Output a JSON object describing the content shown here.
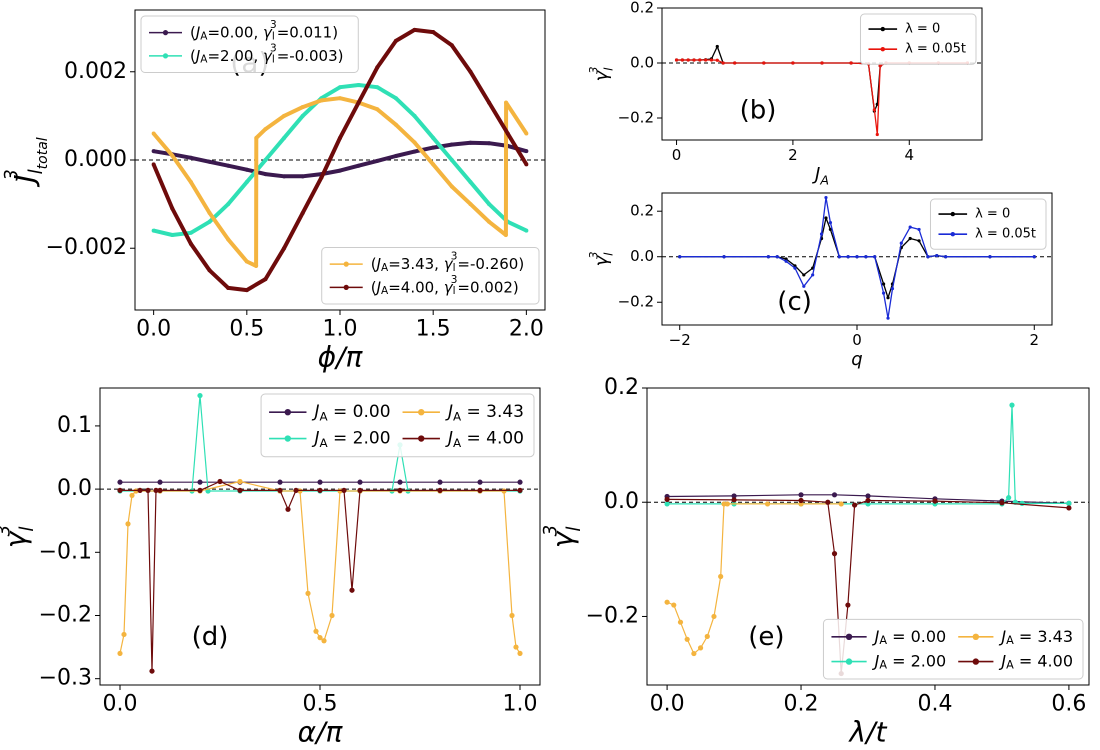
{
  "chart_data": [
    {
      "id": "a",
      "type": "line",
      "panel_label": "(a)",
      "xlabel": "ϕ/π",
      "ylabel_main": "J",
      "ylabel_sup": "3",
      "ylabel_sub": "l",
      "ylabel_subsub": "total",
      "xlim": [
        -0.1,
        2.1
      ],
      "ylim": [
        -0.0034,
        0.0034
      ],
      "xticks": [
        0.0,
        0.5,
        1.0,
        1.5,
        2.0
      ],
      "xtick_labels": [
        "0.0",
        "0.5",
        "1.0",
        "1.5",
        "2.0"
      ],
      "yticks": [
        -0.002,
        0.0,
        0.002
      ],
      "ytick_labels": [
        "−0.002",
        "0.000",
        "0.002"
      ],
      "series": [
        {
          "name": "(J_A=0.00, γ_l^3=0.011)",
          "legend_parts": [
            "(",
            "J",
            "A",
            "=0.00, ",
            "γ",
            "l",
            "3",
            "=0.011)"
          ],
          "color": "#3b1a4f",
          "x": [
            0.0,
            0.1,
            0.2,
            0.3,
            0.4,
            0.5,
            0.6,
            0.7,
            0.8,
            0.9,
            1.0,
            1.1,
            1.2,
            1.3,
            1.4,
            1.5,
            1.6,
            1.7,
            1.8,
            1.9,
            2.0
          ],
          "values": [
            0.0002,
            0.00013,
            5e-05,
            -4e-05,
            -0.00013,
            -0.00022,
            -0.00032,
            -0.00037,
            -0.00037,
            -0.00032,
            -0.00024,
            -0.00013,
            -2e-05,
            9e-05,
            0.00019,
            0.00028,
            0.00035,
            0.00039,
            0.00038,
            0.00032,
            0.0002
          ]
        },
        {
          "name": "(J_A=2.00, γ_l^3=-0.003)",
          "legend_parts": [
            "(",
            "J",
            "A",
            "=2.00, ",
            "γ",
            "l",
            "3",
            "=-0.003)"
          ],
          "color": "#2fe0b5",
          "x": [
            0.0,
            0.1,
            0.2,
            0.3,
            0.4,
            0.5,
            0.6,
            0.7,
            0.8,
            0.9,
            1.0,
            1.1,
            1.2,
            1.3,
            1.4,
            1.5,
            1.6,
            1.7,
            1.8,
            1.9,
            2.0
          ],
          "values": [
            -0.0016,
            -0.0017,
            -0.00165,
            -0.0014,
            -0.001,
            -0.0005,
            0.0,
            0.0005,
            0.001,
            0.0014,
            0.00165,
            0.0017,
            0.00165,
            0.0014,
            0.001,
            0.0005,
            0.0,
            -0.0005,
            -0.001,
            -0.0014,
            -0.0016
          ]
        },
        {
          "name": "(J_A=3.43, γ_l^3=-0.260)",
          "legend_parts": [
            "(",
            "J",
            "A",
            "=3.43, ",
            "γ",
            "l",
            "3",
            "=-0.260)"
          ],
          "color": "#f4b43f",
          "x": [
            0.0,
            0.1,
            0.2,
            0.3,
            0.4,
            0.5,
            0.55,
            0.551,
            0.6,
            0.7,
            0.8,
            0.9,
            1.0,
            1.1,
            1.2,
            1.3,
            1.4,
            1.5,
            1.6,
            1.7,
            1.8,
            1.89,
            1.891,
            2.0
          ],
          "values": [
            0.0006,
            0.0001,
            -0.0005,
            -0.0012,
            -0.0018,
            -0.0023,
            -0.0024,
            0.0005,
            0.0007,
            0.001,
            0.0012,
            0.00135,
            0.0014,
            0.0013,
            0.00115,
            0.0008,
            0.0004,
            -0.0001,
            -0.0006,
            -0.001,
            -0.0014,
            -0.0017,
            0.0013,
            0.0006
          ]
        },
        {
          "name": "(J_A=4.00, γ_l^3=0.002)",
          "legend_parts": [
            "(",
            "J",
            "A",
            "=4.00, ",
            "γ",
            "l",
            "3",
            "=0.002)"
          ],
          "color": "#6e0b0b",
          "x": [
            0.0,
            0.1,
            0.2,
            0.3,
            0.4,
            0.5,
            0.6,
            0.7,
            0.8,
            0.9,
            1.0,
            1.1,
            1.2,
            1.3,
            1.4,
            1.5,
            1.6,
            1.7,
            1.8,
            1.9,
            2.0
          ],
          "values": [
            -0.0001,
            -0.0011,
            -0.0019,
            -0.0025,
            -0.0029,
            -0.00295,
            -0.0027,
            -0.002,
            -0.0012,
            -0.0004,
            0.0005,
            0.0013,
            0.0021,
            0.0027,
            0.00295,
            0.0029,
            0.0026,
            0.002,
            0.0013,
            0.0006,
            -0.0001
          ]
        }
      ]
    },
    {
      "id": "b",
      "type": "line",
      "panel_label": "(b)",
      "xlabel_main": "J",
      "xlabel_sub": "A",
      "ylabel_main": "γ",
      "ylabel_sup": "3",
      "ylabel_sub": "l",
      "xlim": [
        -0.25,
        5.25
      ],
      "ylim": [
        -0.28,
        0.2
      ],
      "xticks": [
        0,
        2,
        4
      ],
      "xtick_labels": [
        "0",
        "2",
        "4"
      ],
      "yticks": [
        -0.2,
        0.0,
        0.2
      ],
      "ytick_labels": [
        "−0.2",
        "0.0",
        "0.2"
      ],
      "series": [
        {
          "name": "λ = 0",
          "color": "#000000",
          "x": [
            0.0,
            0.1,
            0.2,
            0.3,
            0.4,
            0.5,
            0.6,
            0.7,
            0.8,
            1.0,
            1.5,
            2.0,
            2.5,
            3.0,
            3.3,
            3.4,
            3.45,
            3.5,
            3.6,
            4.0,
            4.5,
            5.0
          ],
          "values": [
            0.011,
            0.011,
            0.011,
            0.011,
            0.011,
            0.012,
            0.015,
            0.06,
            0.0,
            0.0,
            0.0,
            0.0,
            0.0,
            0.0,
            -0.003,
            -0.175,
            -0.15,
            -0.01,
            0.0,
            0.0,
            0.0,
            0.0
          ]
        },
        {
          "name": "λ = 0.05t",
          "color": "#e8140c",
          "x": [
            0.0,
            0.1,
            0.2,
            0.3,
            0.4,
            0.5,
            0.6,
            0.7,
            0.8,
            1.0,
            1.5,
            2.0,
            2.5,
            3.0,
            3.3,
            3.4,
            3.45,
            3.5,
            3.6,
            4.0,
            4.5,
            5.0
          ],
          "values": [
            0.011,
            0.011,
            0.011,
            0.011,
            0.011,
            0.011,
            0.011,
            0.01,
            0.0,
            0.0,
            0.0,
            0.0,
            0.0,
            0.0,
            -0.003,
            -0.17,
            -0.26,
            -0.01,
            0.0,
            0.0,
            0.0,
            0.0
          ]
        }
      ]
    },
    {
      "id": "c",
      "type": "line",
      "panel_label": "(c)",
      "xlabel": "q",
      "ylabel_main": "γ",
      "ylabel_sup": "3",
      "ylabel_sub": "l",
      "xlim": [
        -2.2,
        2.2
      ],
      "ylim": [
        -0.3,
        0.28
      ],
      "xticks": [
        -2,
        0,
        2
      ],
      "xtick_labels": [
        "−2",
        "0",
        "2"
      ],
      "yticks": [
        -0.2,
        0.0,
        0.2
      ],
      "ytick_labels": [
        "−0.2",
        "0.0",
        "0.2"
      ],
      "series": [
        {
          "name": "λ = 0",
          "color": "#000000",
          "x": [
            -2.0,
            -1.5,
            -1.0,
            -0.9,
            -0.8,
            -0.7,
            -0.6,
            -0.5,
            -0.4,
            -0.35,
            -0.3,
            -0.2,
            -0.1,
            0.0,
            0.1,
            0.2,
            0.3,
            0.35,
            0.4,
            0.5,
            0.6,
            0.7,
            0.8,
            0.9,
            1.0,
            1.5,
            2.0
          ],
          "values": [
            0.0,
            0.0,
            0.0,
            0.0,
            -0.01,
            -0.04,
            -0.08,
            -0.05,
            0.08,
            0.17,
            0.12,
            0.0,
            0.0,
            0.0,
            0.0,
            0.0,
            -0.12,
            -0.18,
            -0.12,
            0.04,
            0.08,
            0.07,
            0.0,
            0.005,
            0.0,
            0.0,
            0.0
          ]
        },
        {
          "name": "λ = 0.05t",
          "color": "#1a2bd6",
          "x": [
            -2.0,
            -1.5,
            -1.0,
            -0.9,
            -0.8,
            -0.7,
            -0.6,
            -0.5,
            -0.4,
            -0.35,
            -0.3,
            -0.2,
            -0.1,
            0.0,
            0.1,
            0.2,
            0.3,
            0.35,
            0.4,
            0.5,
            0.6,
            0.7,
            0.8,
            0.9,
            1.0,
            1.5,
            2.0
          ],
          "values": [
            0.0,
            0.0,
            0.0,
            0.0,
            -0.02,
            -0.05,
            -0.13,
            -0.08,
            0.1,
            0.26,
            0.15,
            0.0,
            0.0,
            0.0,
            0.0,
            0.0,
            -0.16,
            -0.27,
            -0.14,
            0.06,
            0.13,
            0.12,
            0.0,
            0.005,
            0.0,
            0.0,
            0.0
          ]
        }
      ]
    },
    {
      "id": "d",
      "type": "line",
      "panel_label": "(d)",
      "xlabel": "α/π",
      "ylabel_main": "γ",
      "ylabel_sup": "3",
      "ylabel_sub": "l",
      "xlim": [
        -0.05,
        1.05
      ],
      "ylim": [
        -0.31,
        0.16
      ],
      "xticks": [
        0.0,
        0.5,
        1.0
      ],
      "xtick_labels": [
        "0.0",
        "0.5",
        "1.0"
      ],
      "yticks": [
        -0.3,
        -0.2,
        -0.1,
        0.0,
        0.1
      ],
      "ytick_labels": [
        "−0.3",
        "−0.2",
        "−0.1",
        "0.0",
        "0.1"
      ],
      "series": [
        {
          "name": "J_A = 0.00",
          "legend_main": "J",
          "legend_sub": "A",
          "legend_value": " = 0.00",
          "color": "#3b1a4f",
          "x": [
            0.0,
            0.1,
            0.2,
            0.3,
            0.4,
            0.5,
            0.6,
            0.7,
            0.8,
            0.9,
            1.0
          ],
          "values": [
            0.011,
            0.011,
            0.011,
            0.011,
            0.011,
            0.011,
            0.011,
            0.011,
            0.011,
            0.011,
            0.011
          ]
        },
        {
          "name": "J_A = 2.00",
          "legend_main": "J",
          "legend_sub": "A",
          "legend_value": " = 2.00",
          "color": "#2fe0b5",
          "x": [
            0.0,
            0.1,
            0.18,
            0.2,
            0.22,
            0.3,
            0.4,
            0.5,
            0.6,
            0.68,
            0.7,
            0.72,
            0.8,
            0.9,
            1.0
          ],
          "values": [
            -0.003,
            -0.003,
            -0.003,
            0.148,
            -0.003,
            -0.003,
            -0.003,
            -0.003,
            -0.003,
            -0.003,
            0.07,
            -0.003,
            -0.003,
            -0.003,
            -0.003
          ]
        },
        {
          "name": "J_A = 3.43",
          "legend_main": "J",
          "legend_sub": "A",
          "legend_value": " = 3.43",
          "color": "#f4b43f",
          "x": [
            0.0,
            0.01,
            0.02,
            0.03,
            0.04,
            0.1,
            0.2,
            0.3,
            0.4,
            0.45,
            0.47,
            0.49,
            0.5,
            0.51,
            0.53,
            0.55,
            0.6,
            0.7,
            0.8,
            0.9,
            0.96,
            0.98,
            0.99,
            1.0
          ],
          "values": [
            -0.26,
            -0.23,
            -0.055,
            -0.01,
            -0.003,
            -0.003,
            -0.003,
            0.012,
            -0.003,
            -0.003,
            -0.165,
            -0.225,
            -0.235,
            -0.24,
            -0.2,
            -0.003,
            -0.003,
            -0.003,
            -0.003,
            -0.003,
            -0.003,
            -0.2,
            -0.25,
            -0.26
          ]
        },
        {
          "name": "J_A = 4.00",
          "legend_main": "J",
          "legend_sub": "A",
          "legend_value": " = 4.00",
          "color": "#6e0b0b",
          "x": [
            0.0,
            0.05,
            0.07,
            0.08,
            0.09,
            0.1,
            0.2,
            0.25,
            0.3,
            0.4,
            0.42,
            0.44,
            0.5,
            0.56,
            0.58,
            0.6,
            0.7,
            0.8,
            0.9,
            1.0
          ],
          "values": [
            -0.002,
            -0.002,
            -0.002,
            -0.288,
            -0.002,
            -0.002,
            -0.002,
            0.012,
            -0.002,
            -0.002,
            -0.032,
            -0.002,
            -0.002,
            -0.002,
            -0.16,
            -0.002,
            -0.002,
            -0.002,
            -0.002,
            -0.002
          ]
        }
      ]
    },
    {
      "id": "e",
      "type": "line",
      "panel_label": "(e)",
      "xlabel": "λ/t",
      "ylabel_main": "γ",
      "ylabel_sup": "3",
      "ylabel_sub": "l",
      "xlim": [
        -0.03,
        0.63
      ],
      "ylim": [
        -0.32,
        0.2
      ],
      "xticks": [
        0.0,
        0.2,
        0.4,
        0.6
      ],
      "xtick_labels": [
        "0.0",
        "0.2",
        "0.4",
        "0.6"
      ],
      "yticks": [
        -0.2,
        0.0,
        0.2
      ],
      "ytick_labels": [
        "−0.2",
        "0.0",
        "0.2"
      ],
      "series": [
        {
          "name": "J_A = 0.00",
          "legend_main": "J",
          "legend_sub": "A",
          "legend_value": " = 0.00",
          "color": "#3b1a4f",
          "x": [
            0.0,
            0.1,
            0.2,
            0.25,
            0.3,
            0.4,
            0.5,
            0.6
          ],
          "values": [
            0.01,
            0.011,
            0.013,
            0.013,
            0.011,
            0.006,
            0.002,
            -0.002
          ]
        },
        {
          "name": "J_A = 2.00",
          "legend_main": "J",
          "legend_sub": "A",
          "legend_value": " = 2.00",
          "color": "#2fe0b5",
          "x": [
            0.0,
            0.1,
            0.2,
            0.3,
            0.4,
            0.5,
            0.51,
            0.515,
            0.52,
            0.53,
            0.6
          ],
          "values": [
            -0.003,
            -0.003,
            -0.003,
            -0.003,
            -0.003,
            -0.003,
            0.008,
            0.17,
            0.0,
            -0.002,
            -0.002
          ]
        },
        {
          "name": "J_A = 3.43",
          "legend_main": "J",
          "legend_sub": "A",
          "legend_value": " = 3.43",
          "color": "#f4b43f",
          "x": [
            0.0,
            0.01,
            0.02,
            0.03,
            0.04,
            0.05,
            0.06,
            0.07,
            0.08,
            0.085,
            0.09,
            0.15,
            0.2,
            0.26
          ],
          "values": [
            -0.175,
            -0.18,
            -0.21,
            -0.24,
            -0.265,
            -0.255,
            -0.235,
            -0.2,
            -0.13,
            -0.003,
            -0.003,
            -0.003,
            -0.003,
            -0.003
          ]
        },
        {
          "name": "J_A = 4.00",
          "legend_main": "J",
          "legend_sub": "A",
          "legend_value": " = 4.00",
          "color": "#6e0b0b",
          "x": [
            0.0,
            0.1,
            0.2,
            0.24,
            0.25,
            0.26,
            0.27,
            0.28,
            0.3,
            0.4,
            0.5,
            0.6
          ],
          "values": [
            0.005,
            0.004,
            0.003,
            0.0,
            -0.09,
            -0.3,
            -0.18,
            -0.005,
            0.003,
            0.002,
            -0.001,
            -0.01
          ]
        }
      ]
    }
  ]
}
